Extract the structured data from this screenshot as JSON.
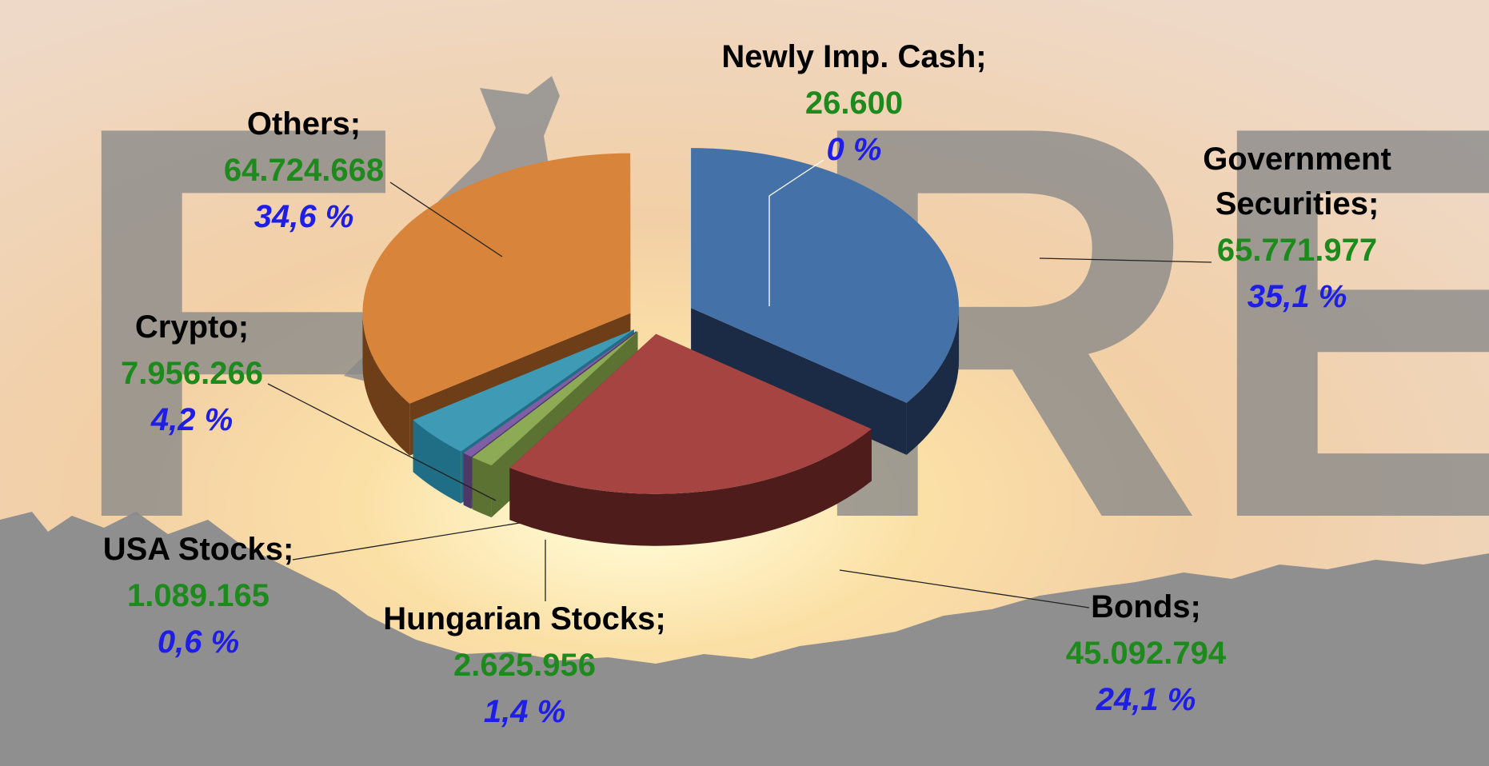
{
  "chart_data": {
    "type": "pie",
    "title": "",
    "background_letters": [
      "F",
      "R",
      "E"
    ],
    "slices": [
      {
        "label": "Government Securities;",
        "value_text": "65.771.977",
        "value": 65771977,
        "percent_text": "35,1 %",
        "percent": 35.1,
        "color": "#4472A8",
        "side_color": "#1B2B45",
        "explode": 55
      },
      {
        "label": "Bonds;",
        "value_text": "45.092.794",
        "value": 45092794,
        "percent_text": "24,1 %",
        "percent": 24.1,
        "color": "#A64442",
        "side_color": "#4E1C1B",
        "explode": 30
      },
      {
        "label": "Hungarian Stocks;",
        "value_text": "2.625.956",
        "value": 2625956,
        "percent_text": "1,4 %",
        "percent": 1.4,
        "color": "#8DAA55",
        "side_color": "#5B7232",
        "explode": 30
      },
      {
        "label": "USA Stocks;",
        "value_text": "1.089.165",
        "value": 1089165,
        "percent_text": "0,6 %",
        "percent": 0.6,
        "color": "#7E5FA5",
        "side_color": "#4D3868",
        "explode": 30
      },
      {
        "label": "Crypto;",
        "value_text": "7.956.266",
        "value": 7956266,
        "percent_text": "4,2 %",
        "percent": 4.2,
        "color": "#3E9AB5",
        "side_color": "#1F6E85",
        "explode": 30
      },
      {
        "label": "Others;",
        "value_text": "64.724.668",
        "value": 64724668,
        "percent_text": "34,6 %",
        "percent": 34.6,
        "color": "#D8843A",
        "side_color": "#6E3E18",
        "explode": 30
      },
      {
        "label": "Newly Imp. Cash;",
        "value_text": "26.600",
        "value": 26600,
        "percent_text": "0 %",
        "percent": 0.0,
        "color": "#FFFFFF",
        "side_color": "#DDDDDD",
        "explode": 30
      }
    ],
    "label_colors": {
      "name": "#000000",
      "value": "#1E8A1E",
      "percent": "#1E1EE6"
    },
    "legend": "none"
  }
}
